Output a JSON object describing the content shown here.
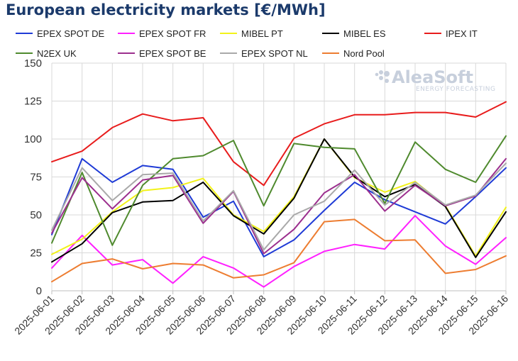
{
  "chart_data": {
    "type": "line",
    "title": "European electricity markets [€/MWh]",
    "xlabel": "",
    "ylabel": "",
    "ylim": [
      0,
      150
    ],
    "yticks": [
      0,
      25,
      50,
      75,
      100,
      125,
      150
    ],
    "grid": true,
    "legend_position": "top",
    "watermark": {
      "main": "AleaSoft",
      "sub": "ENERGY FORECASTING"
    },
    "x": [
      "2025-06-01",
      "2025-06-02",
      "2025-06-03",
      "2025-06-04",
      "2025-06-05",
      "2025-06-06",
      "2025-06-07",
      "2025-06-08",
      "2025-06-09",
      "2025-06-10",
      "2025-06-11",
      "2025-06-12",
      "2025-06-13",
      "2025-06-14",
      "2025-06-15",
      "2025-06-16"
    ],
    "series": [
      {
        "name": "EPEX SPOT DE",
        "color": "#1f3bd6",
        "values": [
          37,
          87,
          71.5,
          82.5,
          80,
          48.5,
          59,
          22.5,
          33.5,
          53,
          71.5,
          60,
          52,
          44,
          62,
          81
        ]
      },
      {
        "name": "EPEX SPOT FR",
        "color": "#ff20ff",
        "values": [
          15,
          36.5,
          17,
          20.5,
          5,
          22.5,
          15,
          2.5,
          16,
          26,
          30.5,
          27.5,
          49.5,
          29.5,
          17.5,
          35
        ]
      },
      {
        "name": "MIBEL PT",
        "color": "#f2f21a",
        "values": [
          24,
          34,
          52,
          66,
          68,
          74,
          50,
          39,
          62,
          100,
          74.5,
          65,
          72,
          56,
          23,
          55
        ]
      },
      {
        "name": "MIBEL ES",
        "color": "#000000",
        "values": [
          19,
          31,
          51.5,
          58.5,
          59.5,
          71.5,
          49.5,
          37.5,
          61,
          100,
          75,
          62,
          70,
          55.5,
          22,
          52
        ]
      },
      {
        "name": "IPEX IT",
        "color": "#e81c1c",
        "values": [
          85,
          92,
          107.5,
          116.5,
          112,
          114,
          85,
          69.5,
          100.5,
          110,
          116,
          116,
          117.5,
          117.5,
          114.5,
          124.5
        ]
      },
      {
        "name": "N2EX UK",
        "color": "#4f8a2e",
        "values": [
          31.5,
          78,
          30,
          69.5,
          87,
          89,
          99,
          56,
          97,
          94.5,
          93.5,
          57.5,
          98,
          80,
          71.5,
          102
        ]
      },
      {
        "name": "EPEX SPOT BE",
        "color": "#9c2f8e",
        "values": [
          38,
          74.5,
          54,
          73,
          76,
          44.5,
          65.5,
          24.5,
          40.5,
          64.5,
          76.5,
          52.5,
          69.5,
          56,
          62.5,
          87
        ]
      },
      {
        "name": "EPEX SPOT NL",
        "color": "#a9a9a9",
        "values": [
          40,
          81,
          59.5,
          76.5,
          77.5,
          46,
          66,
          27,
          50,
          59,
          79.5,
          56.5,
          71.5,
          56.5,
          63,
          84
        ]
      },
      {
        "name": "Nord Pool",
        "color": "#ed7d31",
        "values": [
          6,
          18,
          21,
          14.5,
          18,
          17,
          8.5,
          10.5,
          18.5,
          45.5,
          47,
          33,
          33.5,
          11.5,
          14,
          23
        ]
      }
    ]
  }
}
